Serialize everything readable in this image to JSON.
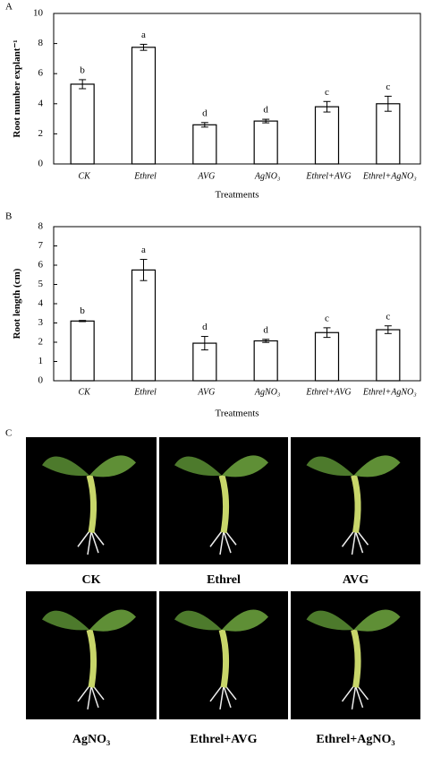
{
  "chart_data": [
    {
      "type": "bar",
      "panel": "A",
      "ylabel": "Root number  explant⁻¹",
      "xlabel": "Treatments",
      "categories": [
        "CK",
        "Ethrel",
        "AVG",
        "AgNO₃",
        "Ethrel+AVG",
        "Ethrel+AgNO₃"
      ],
      "values": [
        5.3,
        7.75,
        2.6,
        2.85,
        3.8,
        4.0
      ],
      "errors": [
        0.3,
        0.2,
        0.15,
        0.12,
        0.35,
        0.5
      ],
      "letters": [
        "b",
        "a",
        "d",
        "d",
        "c",
        "c"
      ],
      "color": "#ffffff",
      "ylim": [
        0,
        10
      ],
      "yticks": [
        0,
        2,
        4,
        6,
        8,
        10
      ]
    },
    {
      "type": "bar",
      "panel": "B",
      "ylabel": "Root length (cm)",
      "xlabel": "Treatments",
      "categories": [
        "CK",
        "Ethrel",
        "AVG",
        "AgNO₃",
        "Ethrel+AVG",
        "Ethrel+AgNO₃"
      ],
      "values": [
        3.1,
        5.75,
        1.95,
        2.07,
        2.5,
        2.65
      ],
      "errors": [
        0.03,
        0.55,
        0.35,
        0.08,
        0.25,
        0.2
      ],
      "letters": [
        "b",
        "a",
        "d",
        "d",
        "c",
        "c"
      ],
      "color": "#ffffff",
      "ylim": [
        0,
        8
      ],
      "yticks": [
        0,
        1,
        2,
        3,
        4,
        5,
        6,
        7,
        8
      ]
    }
  ],
  "panel_c": {
    "label": "C",
    "captions": [
      "CK",
      "Ethrel",
      "AVG",
      "AgNO₃",
      "Ethrel+AVG",
      "Ethrel+AgNO₃"
    ]
  }
}
